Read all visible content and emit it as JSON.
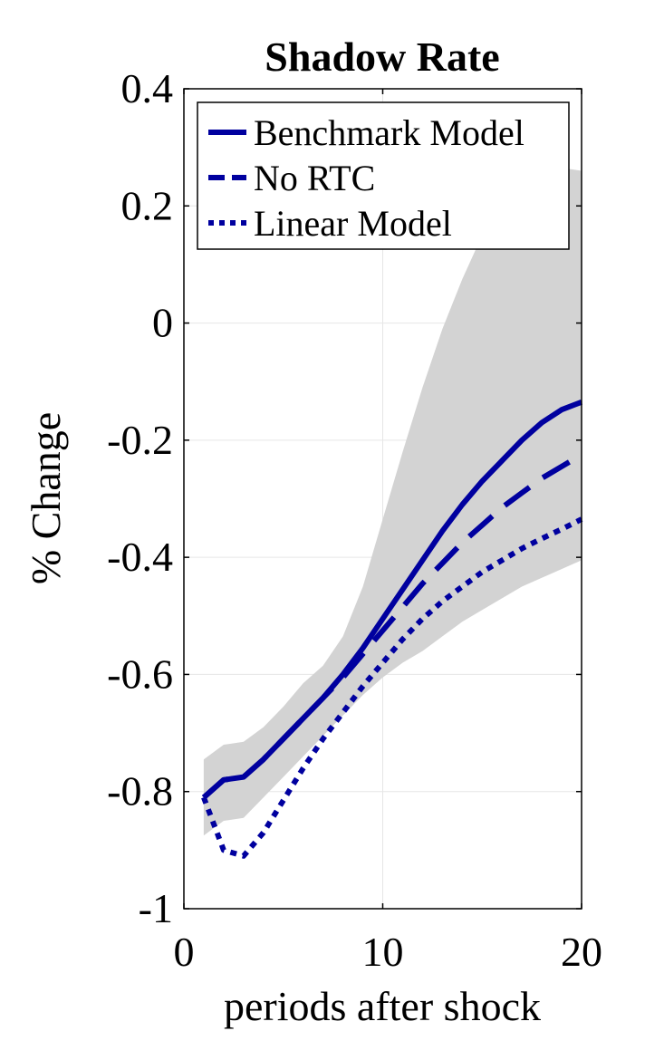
{
  "chart_data": {
    "type": "line",
    "title": "Shadow Rate",
    "xlabel": "periods after shock",
    "ylabel": "% Change",
    "xlim": [
      0,
      20
    ],
    "ylim": [
      -1,
      0.4
    ],
    "xticks": [
      0,
      10,
      20
    ],
    "xtick_labels": [
      "0",
      "10",
      "20"
    ],
    "yticks": [
      0.4,
      0.2,
      0,
      -0.2,
      -0.4,
      -0.6,
      -0.8,
      -1
    ],
    "ytick_labels": [
      "0.4",
      "0.2",
      "0",
      "-0.2",
      "-0.4",
      "-0.6",
      "-0.8",
      "-1"
    ],
    "grid": true,
    "legend_position": "top-right",
    "x": [
      1,
      2,
      3,
      4,
      5,
      6,
      7,
      8,
      9,
      10,
      11,
      12,
      13,
      14,
      15,
      16,
      17,
      18,
      19,
      20
    ],
    "series": [
      {
        "name": "Benchmark Model",
        "style": "solid",
        "color": "#00009f",
        "values": [
          -0.81,
          -0.78,
          -0.775,
          -0.745,
          -0.71,
          -0.675,
          -0.64,
          -0.6,
          -0.555,
          -0.505,
          -0.455,
          -0.405,
          -0.355,
          -0.31,
          -0.27,
          -0.235,
          -0.2,
          -0.17,
          -0.148,
          -0.135
        ]
      },
      {
        "name": "No RTC",
        "style": "dashed",
        "color": "#00009f",
        "values": [
          -0.81,
          -0.78,
          -0.775,
          -0.745,
          -0.71,
          -0.675,
          -0.64,
          -0.605,
          -0.565,
          -0.525,
          -0.485,
          -0.445,
          -0.41,
          -0.375,
          -0.345,
          -0.315,
          -0.29,
          -0.265,
          -0.245,
          -0.225
        ]
      },
      {
        "name": "Linear Model",
        "style": "dotted",
        "color": "#00009f",
        "values": [
          -0.81,
          -0.9,
          -0.91,
          -0.87,
          -0.815,
          -0.76,
          -0.71,
          -0.665,
          -0.62,
          -0.58,
          -0.54,
          -0.505,
          -0.475,
          -0.45,
          -0.425,
          -0.405,
          -0.385,
          -0.368,
          -0.352,
          -0.335
        ]
      }
    ],
    "confidence_band": {
      "color": "#d3d3d3",
      "lower": [
        -0.875,
        -0.85,
        -0.845,
        -0.81,
        -0.775,
        -0.74,
        -0.705,
        -0.67,
        -0.635,
        -0.605,
        -0.58,
        -0.56,
        -0.535,
        -0.51,
        -0.49,
        -0.47,
        -0.45,
        -0.435,
        -0.42,
        -0.405
      ],
      "upper": [
        -0.745,
        -0.72,
        -0.715,
        -0.69,
        -0.655,
        -0.615,
        -0.585,
        -0.535,
        -0.45,
        -0.335,
        -0.22,
        -0.11,
        -0.01,
        0.075,
        0.15,
        0.215,
        0.25,
        0.265,
        0.265,
        0.26
      ]
    }
  }
}
